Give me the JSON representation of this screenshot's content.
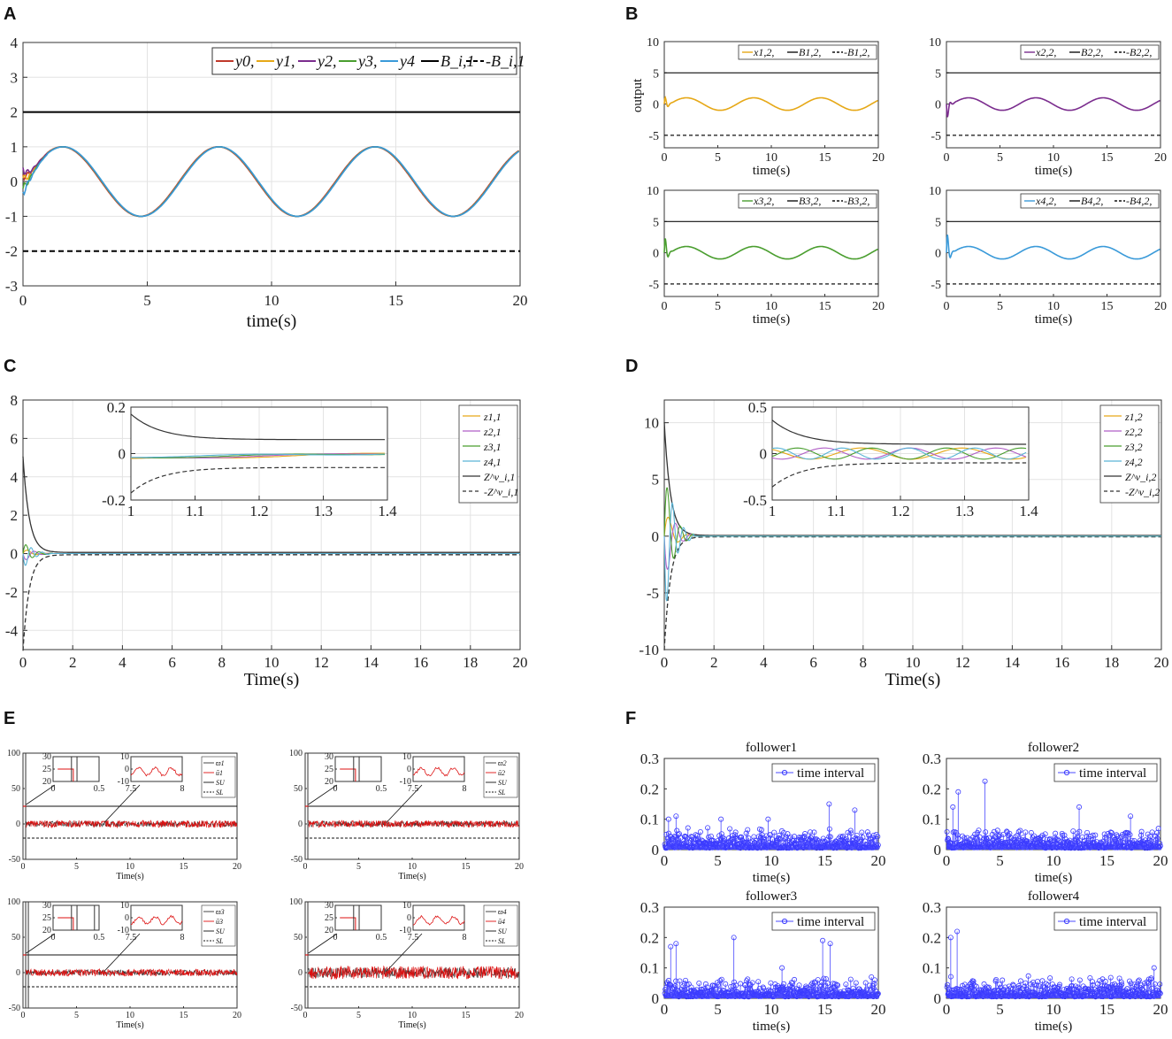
{
  "chart_data": [
    {
      "panel": "A",
      "type": "line",
      "xlabel": "time(s)",
      "ylabel": "",
      "xlim": [
        0,
        20
      ],
      "ylim": [
        -3,
        4
      ],
      "xticks": [
        "0",
        "5",
        "10",
        "15",
        "20"
      ],
      "yticks": [
        "-3",
        "-2",
        "-1",
        "0",
        "1",
        "2",
        "3",
        "4"
      ],
      "legend": [
        "y0,",
        "y1,",
        "y2,",
        "y3,",
        "y4",
        "B_i,1",
        "-B_i,1"
      ],
      "legend_position": "top-right",
      "series": [
        {
          "name": "y0",
          "color": "#c0392b",
          "function": "sin",
          "amplitude": 1,
          "omega": 1,
          "phase": 0,
          "y0": 0.2
        },
        {
          "name": "y1",
          "color": "#e6a817",
          "function": "sin",
          "amplitude": 1,
          "omega": 1,
          "phase": 0.02,
          "y0": 0.1
        },
        {
          "name": "y2",
          "color": "#7b2d8e",
          "function": "sin",
          "amplitude": 1,
          "omega": 1,
          "phase": 0.03,
          "y0": 0.4
        },
        {
          "name": "y3",
          "color": "#4a9e2f",
          "function": "sin",
          "amplitude": 1,
          "omega": 1,
          "phase": 0.04,
          "y0": -0.2
        },
        {
          "name": "y4",
          "color": "#3a9ad9",
          "function": "sin",
          "amplitude": 1,
          "omega": 1,
          "phase": 0.05,
          "y0": -0.3
        },
        {
          "name": "B_i,1",
          "color": "#000000",
          "constant": 2,
          "dash": "solid"
        },
        {
          "name": "-B_i,1",
          "color": "#000000",
          "constant": -2,
          "dash": "dashed"
        }
      ]
    },
    {
      "panel": "B",
      "type": "line",
      "ylabel": "output",
      "subplots": [
        {
          "xlabel": "time(s)",
          "xlim": [
            0,
            20
          ],
          "ylim": [
            -7,
            10
          ],
          "xticks": [
            "0",
            "5",
            "10",
            "15",
            "20"
          ],
          "yticks": [
            "-5",
            "0",
            "5",
            "10"
          ],
          "legend": [
            "x1,2,",
            "B1,2,",
            "-B1,2,"
          ],
          "color": "#e6a817",
          "bound": 5,
          "peak": 1.6
        },
        {
          "xlabel": "time(s)",
          "xlim": [
            0,
            20
          ],
          "ylim": [
            -7,
            10
          ],
          "xticks": [
            "0",
            "5",
            "10",
            "15",
            "20"
          ],
          "yticks": [
            "-5",
            "0",
            "5",
            "10"
          ],
          "legend": [
            "x2,2,",
            "B2,2,",
            "-B2,2,"
          ],
          "color": "#7b2d8e",
          "bound": 5,
          "peak": -2.5
        },
        {
          "xlabel": "time(s)",
          "xlim": [
            0,
            20
          ],
          "ylim": [
            -7,
            10
          ],
          "xticks": [
            "0",
            "5",
            "10",
            "15",
            "20"
          ],
          "yticks": [
            "-5",
            "0",
            "5",
            "10"
          ],
          "legend": [
            "x3,2,",
            "B3,2,",
            "-B3,2,"
          ],
          "color": "#4a9e2f",
          "bound": 5,
          "peak": 3.2
        },
        {
          "xlabel": "time(s)",
          "xlim": [
            0,
            20
          ],
          "ylim": [
            -7,
            10
          ],
          "xticks": [
            "0",
            "5",
            "10",
            "15",
            "20"
          ],
          "yticks": [
            "-5",
            "0",
            "5",
            "10"
          ],
          "legend": [
            "x4,2,",
            "B4,2,",
            "-B4,2,"
          ],
          "color": "#3a9ad9",
          "bound": 5,
          "peak": 4.0
        }
      ]
    },
    {
      "panel": "C",
      "type": "line",
      "xlabel": "Time(s)",
      "xlim": [
        0,
        20
      ],
      "ylim": [
        -5,
        8
      ],
      "xticks": [
        "0",
        "2",
        "4",
        "6",
        "8",
        "10",
        "12",
        "14",
        "16",
        "18",
        "20"
      ],
      "yticks": [
        "-4",
        "-2",
        "0",
        "2",
        "4",
        "6",
        "8"
      ],
      "legend": [
        "z1,1",
        "z2,1",
        "z3,1",
        "z4,1",
        "Z^v_i,1",
        "-Z^v_i,1"
      ],
      "bound_initial": 5,
      "inset": {
        "xlim": [
          1,
          1.4
        ],
        "ylim": [
          -0.2,
          0.2
        ],
        "xticks": [
          "1",
          "1.1",
          "1.2",
          "1.3",
          "1.4"
        ],
        "yticks": [
          "-0.2",
          "0",
          "0.2"
        ],
        "bound_start": 0.17,
        "bound_end": 0.06
      }
    },
    {
      "panel": "D",
      "type": "line",
      "xlabel": "Time(s)",
      "xlim": [
        0,
        20
      ],
      "ylim": [
        -10,
        12
      ],
      "xticks": [
        "0",
        "2",
        "4",
        "6",
        "8",
        "10",
        "12",
        "14",
        "16",
        "18",
        "20"
      ],
      "yticks": [
        "-10",
        "-5",
        "0",
        "5",
        "10"
      ],
      "legend": [
        "z1,2",
        "z2,2",
        "z3,2",
        "z4,2",
        "Z^v_i,2",
        "-Z^v_i,2"
      ],
      "bound_initial": 10,
      "inset": {
        "xlim": [
          1,
          1.4
        ],
        "ylim": [
          -0.5,
          0.5
        ],
        "xticks": [
          "1",
          "1.1",
          "1.2",
          "1.3",
          "1.4"
        ],
        "yticks": [
          "-0.5",
          "0",
          "0.5"
        ],
        "bound_start": 0.36,
        "bound_end": 0.1
      }
    },
    {
      "panel": "E",
      "type": "line",
      "subplots": [
        {
          "xlabel": "Time(s)",
          "xlim": [
            0,
            20
          ],
          "ylim": [
            -50,
            100
          ],
          "xticks": [
            "0",
            "5",
            "10",
            "15",
            "20"
          ],
          "yticks": [
            "-50",
            "0",
            "50",
            "100"
          ],
          "legend": [
            "ϖ1",
            "ū1",
            "SU",
            "SL"
          ],
          "upper": 25,
          "lower": -20,
          "inset1": {
            "xlim": [
              0,
              0.5
            ],
            "ylim": [
              20,
              30
            ],
            "xticks": [
              "0",
              "0.5"
            ],
            "yticks": [
              "20",
              "25",
              "30"
            ]
          },
          "inset2": {
            "xlim": [
              7.5,
              8
            ],
            "ylim": [
              -10,
              10
            ],
            "xticks": [
              "7.5",
              "8"
            ],
            "yticks": [
              "-10",
              "0",
              "10"
            ]
          }
        },
        {
          "xlabel": "Time(s)",
          "xlim": [
            0,
            20
          ],
          "ylim": [
            -50,
            100
          ],
          "xticks": [
            "0",
            "5",
            "10",
            "15",
            "20"
          ],
          "yticks": [
            "-50",
            "0",
            "50",
            "100"
          ],
          "legend": [
            "ϖ2",
            "ū2",
            "SU",
            "SL"
          ],
          "upper": 25,
          "lower": -20,
          "inset1": {
            "xlim": [
              0,
              0.5
            ],
            "ylim": [
              20,
              30
            ],
            "xticks": [
              "0",
              "0.5"
            ],
            "yticks": [
              "20",
              "25",
              "30"
            ]
          },
          "inset2": {
            "xlim": [
              7.5,
              8
            ],
            "ylim": [
              -10,
              10
            ],
            "xticks": [
              "7.5",
              "8"
            ],
            "yticks": [
              "-10",
              "0",
              "10"
            ]
          }
        },
        {
          "xlabel": "Time(s)",
          "xlim": [
            0,
            20
          ],
          "ylim": [
            -50,
            100
          ],
          "xticks": [
            "0",
            "5",
            "10",
            "15",
            "20"
          ],
          "yticks": [
            "-50",
            "0",
            "50",
            "100"
          ],
          "legend": [
            "ϖ3",
            "ū3",
            "SU",
            "SL"
          ],
          "upper": 25,
          "lower": -20,
          "inset1": {
            "xlim": [
              0,
              0.5
            ],
            "ylim": [
              20,
              30
            ],
            "xticks": [
              "0",
              "0.5"
            ],
            "yticks": [
              "20",
              "25",
              "30"
            ]
          },
          "inset2": {
            "xlim": [
              7.5,
              8
            ],
            "ylim": [
              -10,
              10
            ],
            "xticks": [
              "7.5",
              "8"
            ],
            "yticks": [
              "-10",
              "0",
              "10"
            ]
          }
        },
        {
          "xlabel": "Time(s)",
          "xlim": [
            0,
            20
          ],
          "ylim": [
            -50,
            100
          ],
          "xticks": [
            "0",
            "5",
            "10",
            "15",
            "20"
          ],
          "yticks": [
            "-50",
            "0",
            "50",
            "100"
          ],
          "legend": [
            "ϖ4",
            "ū4",
            "SU",
            "SL"
          ],
          "upper": 25,
          "lower": -20,
          "inset1": {
            "xlim": [
              0,
              0.5
            ],
            "ylim": [
              20,
              30
            ],
            "xticks": [
              "0",
              "0.5"
            ],
            "yticks": [
              "20",
              "25",
              "30"
            ]
          },
          "inset2": {
            "xlim": [
              7.5,
              8
            ],
            "ylim": [
              -10,
              10
            ],
            "xticks": [
              "7.5",
              "8"
            ],
            "yticks": [
              "-10",
              "0",
              "10"
            ]
          }
        }
      ]
    },
    {
      "panel": "F",
      "type": "scatter",
      "subplots": [
        {
          "title": "follower1",
          "xlabel": "time(s)",
          "xlim": [
            0,
            20
          ],
          "ylim": [
            0,
            0.3
          ],
          "xticks": [
            "0",
            "5",
            "10",
            "15",
            "20"
          ],
          "yticks": [
            "0",
            "0.1",
            "0.2",
            "0.3"
          ],
          "legend": "time interval",
          "peaks": [
            [
              0.4,
              0.1
            ],
            [
              1.1,
              0.11
            ],
            [
              5.3,
              0.1
            ],
            [
              9.7,
              0.1
            ],
            [
              15.4,
              0.15
            ],
            [
              17.8,
              0.13
            ]
          ]
        },
        {
          "title": "follower2",
          "xlabel": "time(s)",
          "xlim": [
            0,
            20
          ],
          "ylim": [
            0,
            0.3
          ],
          "xticks": [
            "0",
            "5",
            "10",
            "15",
            "20"
          ],
          "yticks": [
            "0",
            "0.1",
            "0.2",
            "0.3"
          ],
          "legend": "time interval",
          "peaks": [
            [
              0.6,
              0.14
            ],
            [
              1.1,
              0.19
            ],
            [
              3.6,
              0.225
            ],
            [
              12.4,
              0.14
            ],
            [
              17.2,
              0.11
            ]
          ]
        },
        {
          "title": "follower3",
          "xlabel": "time(s)",
          "xlim": [
            0,
            20
          ],
          "ylim": [
            0,
            0.3
          ],
          "xticks": [
            "0",
            "5",
            "10",
            "15",
            "20"
          ],
          "yticks": [
            "0",
            "0.1",
            "0.2",
            "0.3"
          ],
          "legend": "time interval",
          "peaks": [
            [
              0.6,
              0.17
            ],
            [
              1.1,
              0.18
            ],
            [
              6.5,
              0.2
            ],
            [
              14.8,
              0.19
            ],
            [
              15.5,
              0.18
            ],
            [
              11,
              0.1
            ]
          ]
        },
        {
          "title": "follower4",
          "xlabel": "time(s)",
          "xlim": [
            0,
            20
          ],
          "ylim": [
            0,
            0.3
          ],
          "xticks": [
            "0",
            "5",
            "10",
            "15",
            "20"
          ],
          "yticks": [
            "0",
            "0.1",
            "0.2",
            "0.3"
          ],
          "legend": "time interval",
          "peaks": [
            [
              0.4,
              0.2
            ],
            [
              1.0,
              0.22
            ],
            [
              19.4,
              0.1
            ]
          ]
        }
      ]
    }
  ],
  "panel_labels": [
    "A",
    "B",
    "C",
    "D",
    "E",
    "F"
  ]
}
